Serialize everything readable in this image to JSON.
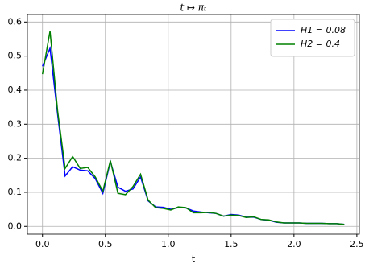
{
  "chart_data": {
    "type": "line",
    "title": "t ↦ πₜ",
    "x_label": "t",
    "x": [
      0,
      0.06,
      0.12,
      0.18,
      0.24,
      0.3,
      0.36,
      0.42,
      0.48,
      0.54,
      0.6,
      0.66,
      0.72,
      0.78,
      0.84,
      0.9,
      0.96,
      1.02,
      1.08,
      1.14,
      1.2,
      1.26,
      1.32,
      1.38,
      1.44,
      1.5,
      1.56,
      1.62,
      1.68,
      1.74,
      1.8,
      1.86,
      1.92,
      1.98,
      2.04,
      2.1,
      2.16,
      2.22,
      2.28,
      2.34,
      2.4
    ],
    "series": [
      {
        "name": "H1 = 0.08",
        "color": "#0000ff",
        "values": [
          0.47,
          0.523,
          0.33,
          0.148,
          0.175,
          0.165,
          0.163,
          0.14,
          0.097,
          0.19,
          0.115,
          0.103,
          0.11,
          0.145,
          0.075,
          0.057,
          0.056,
          0.05,
          0.055,
          0.054,
          0.045,
          0.042,
          0.04,
          0.038,
          0.03,
          0.035,
          0.033,
          0.027,
          0.027,
          0.02,
          0.018,
          0.012,
          0.01,
          0.01,
          0.01,
          0.009,
          0.009,
          0.009,
          0.008,
          0.008,
          0.006
        ]
      },
      {
        "name": "H2 = 0.4",
        "color": "#008000",
        "values": [
          0.447,
          0.573,
          0.34,
          0.17,
          0.205,
          0.17,
          0.173,
          0.145,
          0.103,
          0.193,
          0.097,
          0.093,
          0.117,
          0.153,
          0.077,
          0.055,
          0.053,
          0.048,
          0.057,
          0.055,
          0.04,
          0.04,
          0.041,
          0.038,
          0.03,
          0.033,
          0.032,
          0.026,
          0.028,
          0.02,
          0.019,
          0.013,
          0.01,
          0.01,
          0.01,
          0.009,
          0.009,
          0.009,
          0.008,
          0.008,
          0.006
        ]
      }
    ],
    "xlim": [
      -0.12,
      2.52
    ],
    "ylim": [
      -0.023,
      0.622
    ],
    "xticks": [
      {
        "value": 0,
        "label": "0.0"
      },
      0.5,
      {
        "value": 1,
        "label": "1.0"
      },
      1.5,
      {
        "value": 2,
        "label": "2.0"
      },
      2.5
    ],
    "yticks": [
      {
        "value": 0,
        "label": "0.0"
      },
      0.1,
      0.2,
      0.3,
      0.4,
      0.5,
      0.6
    ],
    "grid": true,
    "legend_loc": "upper right"
  }
}
